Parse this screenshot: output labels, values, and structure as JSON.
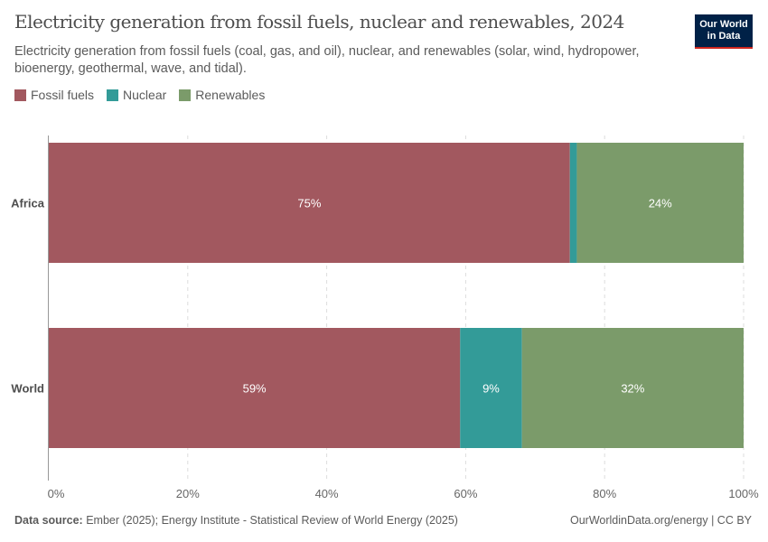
{
  "header": {
    "title": "Electricity generation from fossil fuels, nuclear and renewables, 2024",
    "subtitle": "Electricity generation from fossil fuels (coal, gas, and oil), nuclear, and renewables (solar, wind, hydropower, bioenergy, geothermal, wave, and tidal).",
    "logo": "Our World in Data"
  },
  "footer": {
    "source_label": "Data source:",
    "source": "Ember (2025); Energy Institute - Statistical Review of World Energy (2025)",
    "credit": "OurWorldinData.org/energy | CC BY"
  },
  "chart_data": {
    "type": "bar",
    "orientation": "horizontal",
    "stacked": true,
    "categories": [
      "Africa",
      "World"
    ],
    "series": [
      {
        "name": "Fossil fuels",
        "color": "#a2585f",
        "values": [
          75.0,
          59.2
        ],
        "labels": [
          "75%",
          "59%"
        ]
      },
      {
        "name": "Nuclear",
        "color": "#339b98",
        "values": [
          1.0,
          8.9
        ],
        "labels": [
          null,
          "9%"
        ]
      },
      {
        "name": "Renewables",
        "color": "#7b9b6a",
        "values": [
          24.0,
          31.9
        ],
        "labels": [
          "24%",
          "32%"
        ]
      }
    ],
    "xlim": [
      0,
      100
    ],
    "xticks": [
      "0%",
      "20%",
      "40%",
      "60%",
      "80%",
      "100%"
    ],
    "grid": true,
    "legend": "top-left"
  }
}
